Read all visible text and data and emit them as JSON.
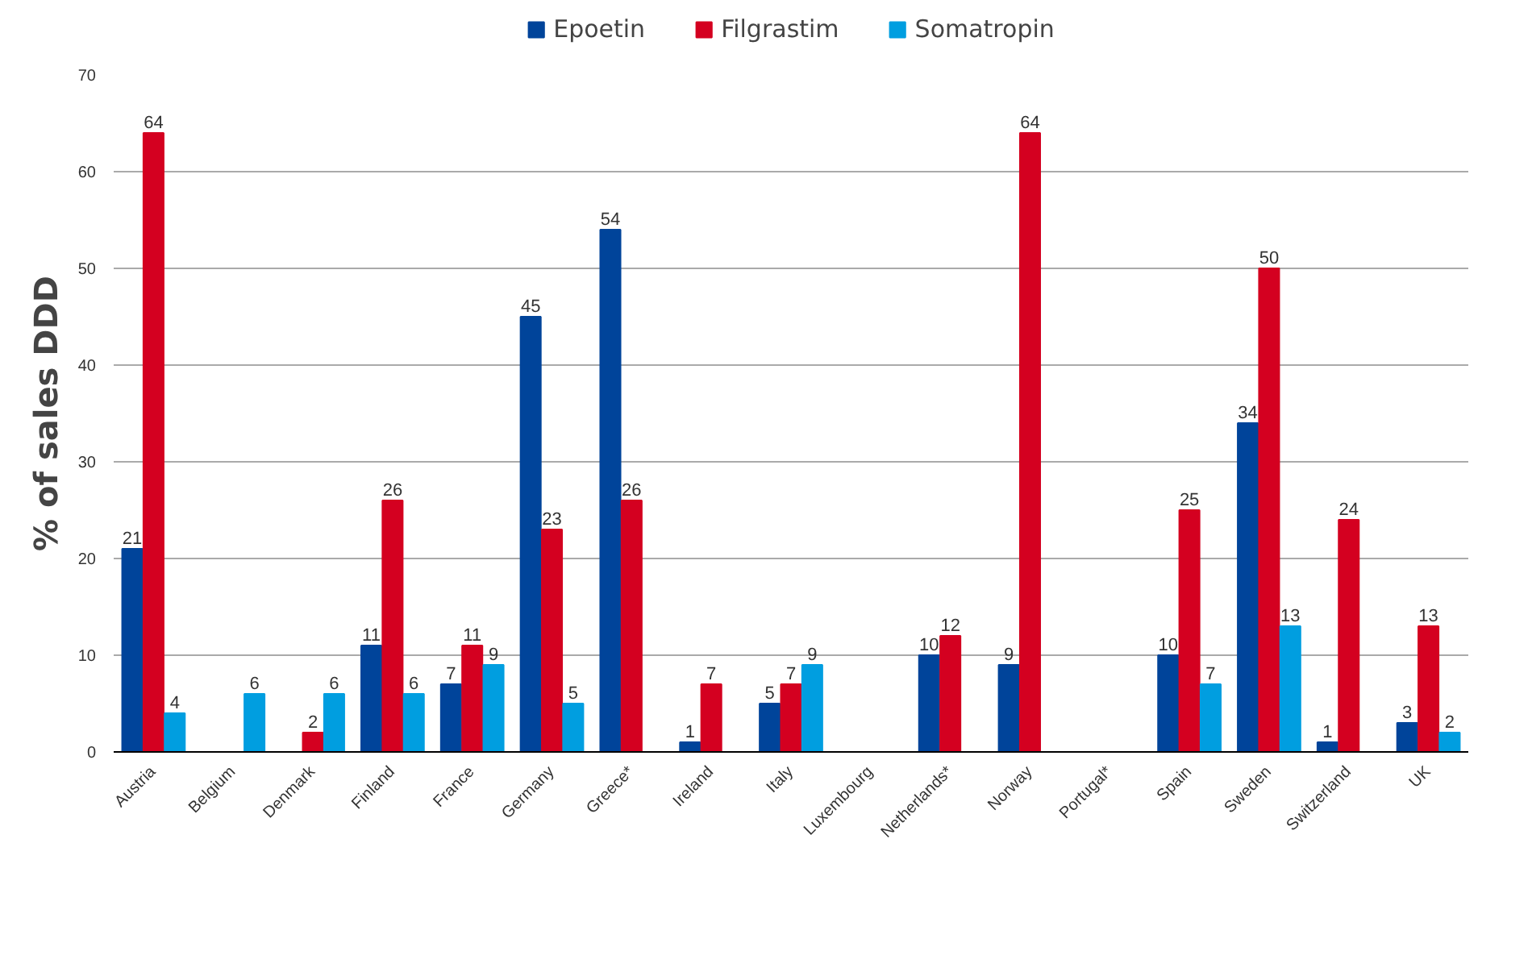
{
  "chart_data": {
    "type": "bar",
    "ylabel": "% of sales DDD",
    "categories": [
      "Austria",
      "Belgium",
      "Denmark",
      "Finland",
      "France",
      "Germany",
      "Greece*",
      "Ireland",
      "Italy",
      "Luxembourg",
      "Netherlands*",
      "Norway",
      "Portugal*",
      "Spain",
      "Sweden",
      "Switzerland",
      "UK"
    ],
    "series": [
      {
        "name": "Epoetin",
        "color": "#00449a",
        "values": [
          21,
          null,
          null,
          11,
          7,
          45,
          54,
          1,
          5,
          null,
          10,
          9,
          null,
          10,
          34,
          1,
          3
        ]
      },
      {
        "name": "Filgrastim",
        "color": "#d40020",
        "values": [
          64,
          null,
          2,
          26,
          11,
          23,
          26,
          7,
          7,
          null,
          12,
          64,
          null,
          25,
          50,
          24,
          13
        ]
      },
      {
        "name": "Somatropin",
        "color": "#009ee0",
        "values": [
          4,
          6,
          6,
          6,
          9,
          5,
          null,
          null,
          9,
          null,
          null,
          null,
          null,
          7,
          13,
          null,
          2
        ]
      }
    ],
    "ylim": [
      0,
      70
    ],
    "yticks": [
      0,
      10,
      20,
      30,
      40,
      50,
      60,
      70
    ],
    "grid": "y",
    "legend": "top",
    "data_labels": true
  }
}
